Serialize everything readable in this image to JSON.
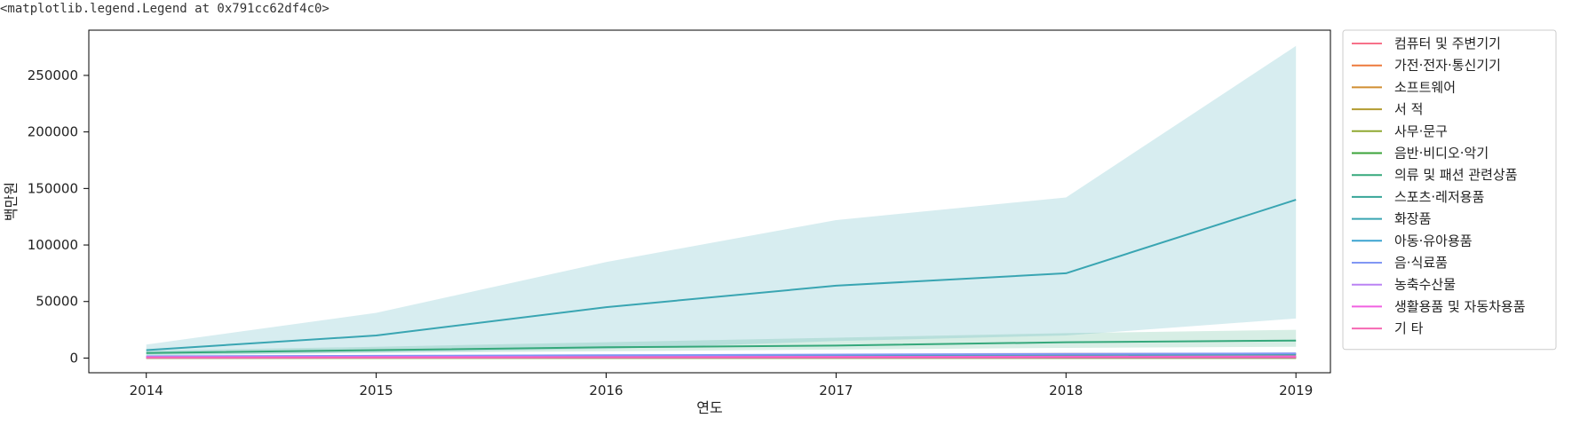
{
  "output_repr": "<matplotlib.legend.Legend at 0x791cc62df4c0>",
  "chart_data": {
    "type": "line",
    "xlabel": "연도",
    "ylabel": "백만원",
    "x": [
      2014,
      2015,
      2016,
      2017,
      2018,
      2019
    ],
    "xlim": [
      2013.75,
      2019.15
    ],
    "ylim": [
      -13000,
      290000
    ],
    "yticks": [
      0,
      50000,
      100000,
      150000,
      200000,
      250000
    ],
    "legend_position": "outside right, top",
    "series": [
      {
        "name": "컴퓨터 및 주변기기",
        "color": "#f77189",
        "values": [
          400,
          600,
          800,
          1000,
          1300,
          1500
        ],
        "ci_low": [
          200,
          300,
          400,
          500,
          600,
          700
        ],
        "ci_high": [
          700,
          900,
          1200,
          1500,
          2000,
          2400
        ]
      },
      {
        "name": "가전·전자·통신기기",
        "color": "#ed7a3c",
        "values": [
          1000,
          1500,
          2000,
          2600,
          3500,
          3200
        ],
        "ci_low": [
          600,
          900,
          1200,
          1600,
          2200,
          2000
        ],
        "ci_high": [
          1500,
          2100,
          2800,
          3600,
          4800,
          4500
        ]
      },
      {
        "name": "소프트웨어",
        "color": "#d08e32",
        "values": [
          100,
          120,
          150,
          180,
          200,
          220
        ],
        "ci_low": [
          50,
          60,
          80,
          90,
          100,
          110
        ],
        "ci_high": [
          150,
          180,
          220,
          260,
          300,
          330
        ]
      },
      {
        "name": "서 적",
        "color": "#b29b31",
        "values": [
          500,
          600,
          700,
          800,
          900,
          1000
        ],
        "ci_low": [
          300,
          400,
          450,
          500,
          550,
          600
        ],
        "ci_high": [
          700,
          800,
          950,
          1100,
          1250,
          1400
        ]
      },
      {
        "name": "사무·문구",
        "color": "#8fa832",
        "values": [
          300,
          350,
          400,
          450,
          500,
          550
        ],
        "ci_low": [
          200,
          230,
          260,
          290,
          320,
          350
        ],
        "ci_high": [
          400,
          470,
          540,
          610,
          680,
          750
        ]
      },
      {
        "name": "음반·비디오·악기",
        "color": "#3ba33a",
        "values": [
          100,
          110,
          120,
          130,
          140,
          150
        ],
        "ci_low": [
          60,
          70,
          80,
          85,
          90,
          95
        ],
        "ci_high": [
          140,
          150,
          160,
          175,
          190,
          205
        ]
      },
      {
        "name": "의류 및 패션 관련상품",
        "color": "#35a87b",
        "values": [
          4500,
          7000,
          9500,
          11000,
          14000,
          15500
        ],
        "ci_low": [
          3000,
          4500,
          6000,
          7500,
          9000,
          10000
        ],
        "ci_high": [
          6500,
          10000,
          14000,
          18000,
          22000,
          25000
        ]
      },
      {
        "name": "스포츠·레저용품",
        "color": "#37a598",
        "values": [
          1000,
          1500,
          2000,
          2500,
          3000,
          3500
        ],
        "ci_low": [
          700,
          1000,
          1300,
          1700,
          2000,
          2300
        ],
        "ci_high": [
          1400,
          2000,
          2700,
          3400,
          4100,
          4800
        ]
      },
      {
        "name": "화장품",
        "color": "#39a5b2",
        "values": [
          7000,
          20000,
          45000,
          64000,
          75000,
          140000
        ],
        "ci_low": [
          2000,
          5000,
          8000,
          15000,
          20000,
          35000
        ],
        "ci_high": [
          12000,
          40000,
          85000,
          122000,
          142000,
          276000
        ]
      },
      {
        "name": "아동·유아용품",
        "color": "#3ba3d0",
        "values": [
          600,
          800,
          1000,
          1200,
          1400,
          1600
        ],
        "ci_low": [
          400,
          500,
          650,
          800,
          900,
          1000
        ],
        "ci_high": [
          800,
          1100,
          1350,
          1600,
          1900,
          2200
        ]
      },
      {
        "name": "음·식료품",
        "color": "#8197f4",
        "values": [
          1500,
          2000,
          2500,
          3000,
          3600,
          4000
        ],
        "ci_low": [
          1000,
          1300,
          1700,
          2000,
          2400,
          2700
        ],
        "ci_high": [
          2000,
          2700,
          3300,
          4000,
          4800,
          5400
        ]
      },
      {
        "name": "농축수산물",
        "color": "#bb83f4",
        "values": [
          500,
          600,
          700,
          800,
          900,
          1000
        ],
        "ci_low": [
          300,
          380,
          450,
          520,
          600,
          650
        ],
        "ci_high": [
          700,
          820,
          950,
          1080,
          1200,
          1350
        ]
      },
      {
        "name": "생활용품 및 자동차용품",
        "color": "#f161e1",
        "values": [
          800,
          900,
          1000,
          1100,
          1200,
          1300
        ],
        "ci_low": [
          500,
          600,
          650,
          700,
          780,
          850
        ],
        "ci_high": [
          1100,
          1200,
          1350,
          1500,
          1620,
          1750
        ]
      },
      {
        "name": "기 타",
        "color": "#f668b3",
        "values": [
          300,
          350,
          400,
          450,
          500,
          550
        ],
        "ci_low": [
          150,
          180,
          210,
          240,
          270,
          300
        ],
        "ci_high": [
          450,
          520,
          590,
          660,
          730,
          800
        ]
      }
    ]
  }
}
